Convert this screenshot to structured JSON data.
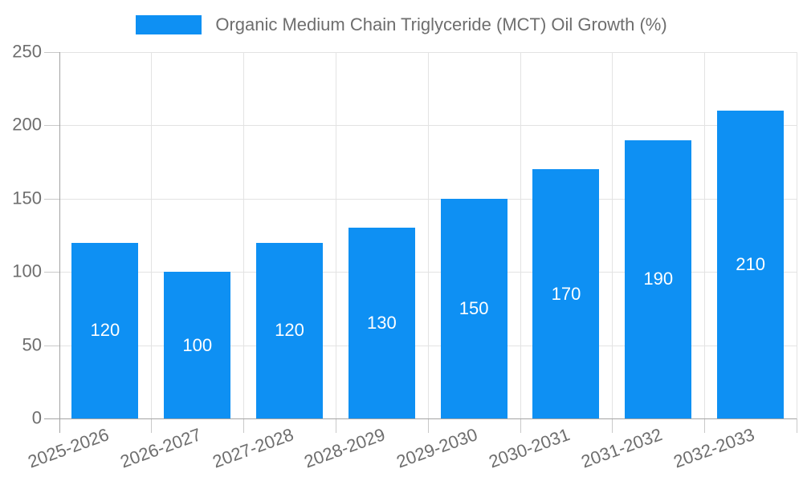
{
  "legend": {
    "label": "Organic Medium Chain Triglyceride (MCT) Oil Growth (%)"
  },
  "colors": {
    "bar": "#0e90f3",
    "grid": "#e3e3e3",
    "axis": "#a3a3a3",
    "tick": "#c9c9c9",
    "axis_text": "#6e6e6e",
    "bar_label_text": "#ffffff",
    "background": "#ffffff"
  },
  "chart_data": {
    "type": "bar",
    "title": "Organic Medium Chain Triglyceride (MCT) Oil Growth (%)",
    "categories": [
      "2025-2026",
      "2026-2027",
      "2027-2028",
      "2028-2029",
      "2029-2030",
      "2030-2031",
      "2031-2032",
      "2032-2033"
    ],
    "series": [
      {
        "name": "Organic Medium Chain Triglyceride (MCT) Oil Growth (%)",
        "values": [
          120,
          100,
          120,
          130,
          150,
          170,
          190,
          210
        ]
      }
    ],
    "data_labels": [
      120,
      100,
      120,
      130,
      150,
      170,
      190,
      210
    ],
    "xlabel": "",
    "ylabel": "",
    "ylim": [
      0,
      250
    ],
    "ytick_step": 50,
    "ytick_labels": [
      "0",
      "50",
      "100",
      "150",
      "200",
      "250"
    ],
    "grid": "horizontal-and-vertical",
    "legend_position": "top",
    "x_label_rotation_deg": -20
  }
}
